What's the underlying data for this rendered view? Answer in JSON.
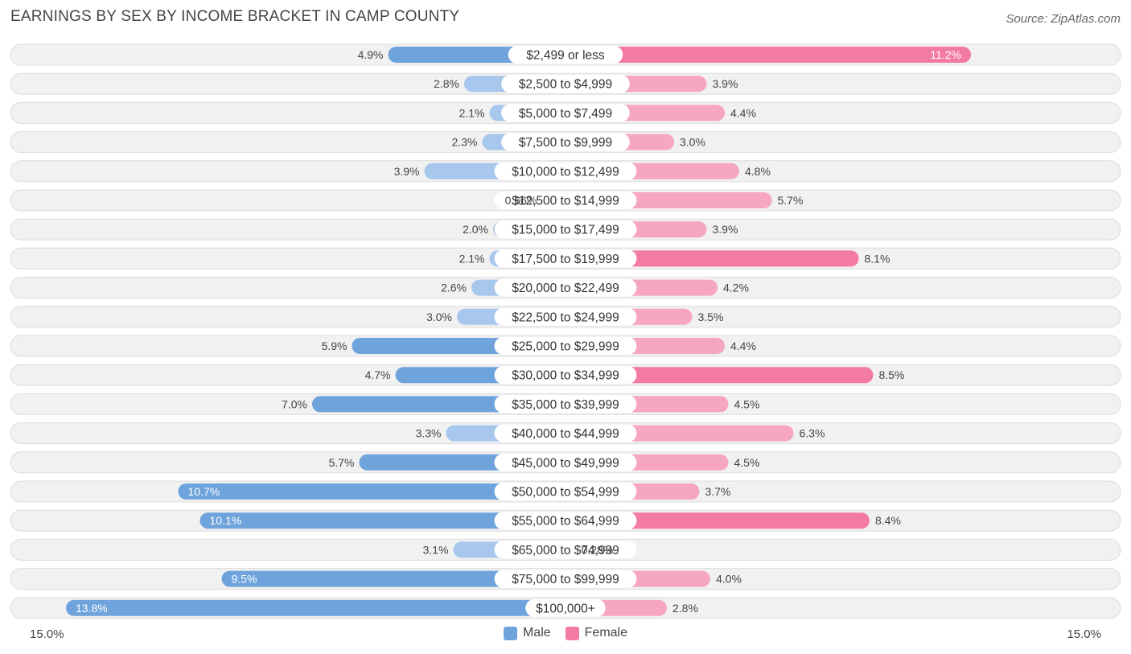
{
  "header": {
    "title": "EARNINGS BY SEX BY INCOME BRACKET IN CAMP COUNTY",
    "source": "Source: ZipAtlas.com"
  },
  "axis": {
    "left_label": "15.0%",
    "right_label": "15.0%"
  },
  "legend": {
    "male_label": "Male",
    "female_label": "Female"
  },
  "colors": {
    "male_strong": "#6fa3dc",
    "male_light": "#a7c7ec",
    "female_strong": "#f37aa0",
    "female_light": "#f6a6c0",
    "row_bg": "#f1f1f1",
    "row_border": "#dcdcdc"
  },
  "chart_data": {
    "type": "bar",
    "orientation": "horizontal-diverging",
    "title": "EARNINGS BY SEX BY INCOME BRACKET IN CAMP COUNTY",
    "xlim": [
      -15.0,
      15.0
    ],
    "categories": [
      "$2,499 or less",
      "$2,500 to $4,999",
      "$5,000 to $7,499",
      "$7,500 to $9,999",
      "$10,000 to $12,499",
      "$12,500 to $14,999",
      "$15,000 to $17,499",
      "$17,500 to $19,999",
      "$20,000 to $22,499",
      "$22,500 to $24,999",
      "$25,000 to $29,999",
      "$30,000 to $34,999",
      "$35,000 to $39,999",
      "$40,000 to $44,999",
      "$45,000 to $49,999",
      "$50,000 to $54,999",
      "$55,000 to $64,999",
      "$65,000 to $74,999",
      "$75,000 to $99,999",
      "$100,000+"
    ],
    "series": [
      {
        "name": "Male",
        "values": [
          4.9,
          2.8,
          2.1,
          2.3,
          3.9,
          0.66,
          2.0,
          2.1,
          2.6,
          3.0,
          5.9,
          4.7,
          7.0,
          3.3,
          5.7,
          10.7,
          10.1,
          3.1,
          9.5,
          13.8
        ],
        "labels": [
          "4.9%",
          "2.8%",
          "2.1%",
          "2.3%",
          "3.9%",
          "0.66%",
          "2.0%",
          "2.1%",
          "2.6%",
          "3.0%",
          "5.9%",
          "4.7%",
          "7.0%",
          "3.3%",
          "5.7%",
          "10.7%",
          "10.1%",
          "3.1%",
          "9.5%",
          "13.8%"
        ]
      },
      {
        "name": "Female",
        "values": [
          11.2,
          3.9,
          4.4,
          3.0,
          4.8,
          5.7,
          3.9,
          8.1,
          4.2,
          3.5,
          4.4,
          8.5,
          4.5,
          6.3,
          4.5,
          3.7,
          8.4,
          0.28,
          4.0,
          2.8
        ],
        "labels": [
          "11.2%",
          "3.9%",
          "4.4%",
          "3.0%",
          "4.8%",
          "5.7%",
          "3.9%",
          "8.1%",
          "4.2%",
          "3.5%",
          "4.4%",
          "8.5%",
          "4.5%",
          "6.3%",
          "4.5%",
          "3.7%",
          "8.4%",
          "0.28%",
          "4.0%",
          "2.8%"
        ]
      }
    ],
    "legend": [
      "Male",
      "Female"
    ]
  }
}
